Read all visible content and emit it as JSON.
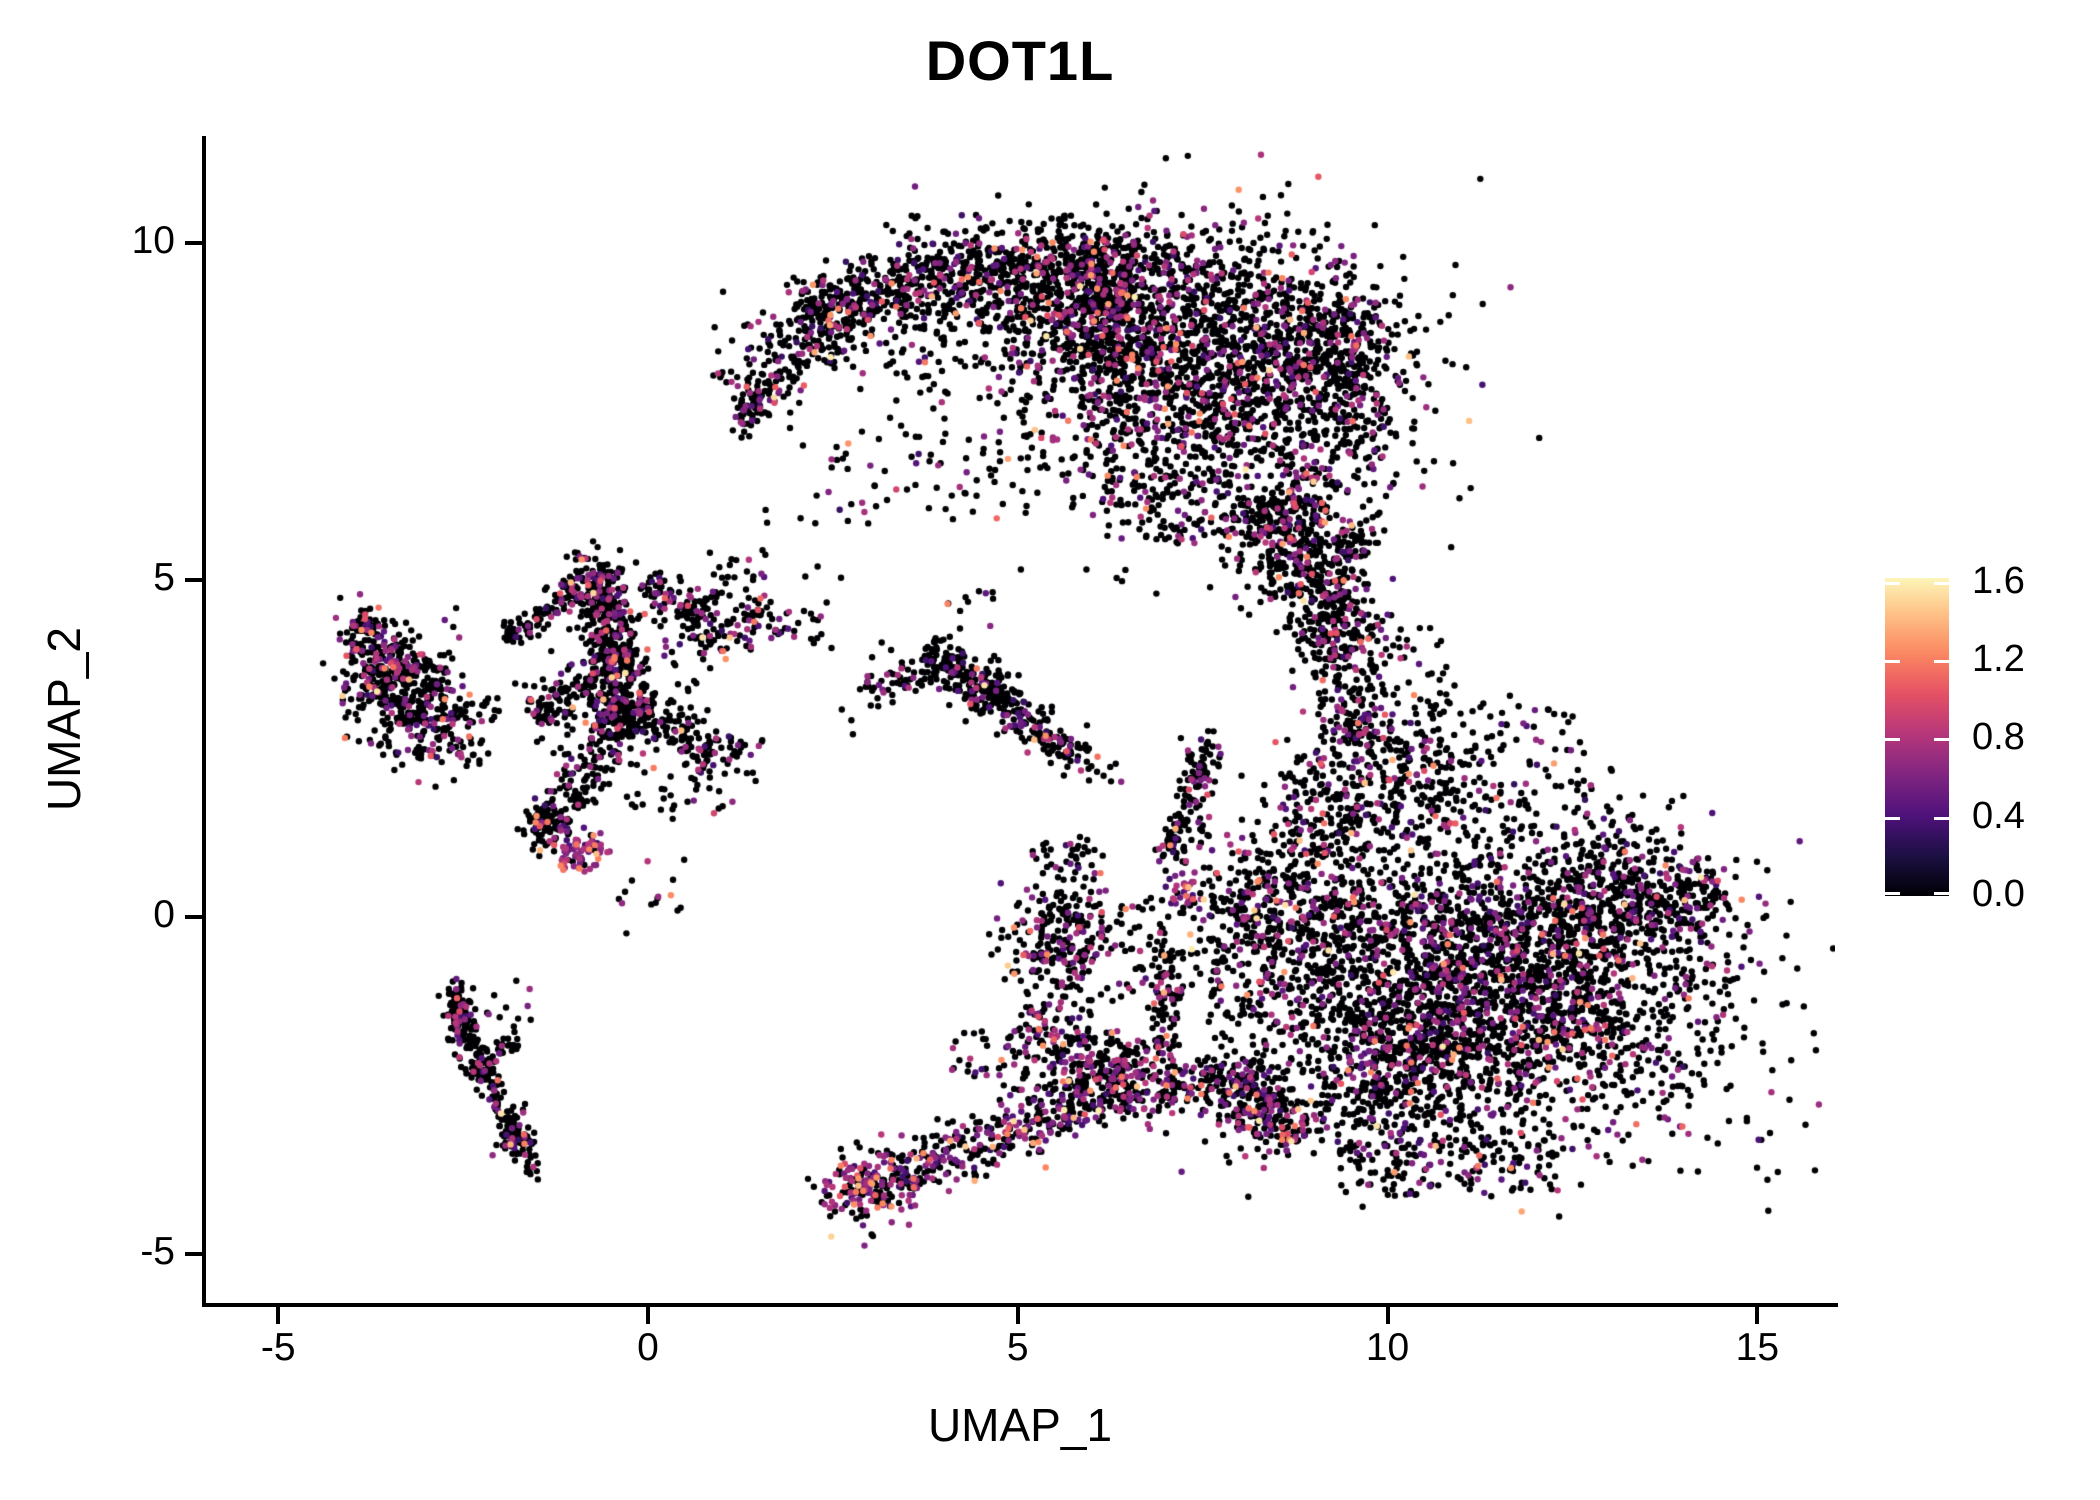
{
  "title": "DOT1L",
  "chart_data": {
    "type": "scatter",
    "title": "DOT1L",
    "xlabel": "UMAP_1",
    "ylabel": "UMAP_2",
    "x_ticks": [
      -5,
      0,
      5,
      10,
      15
    ],
    "x_tick_labels": [
      "-5",
      "0",
      "5",
      "10",
      "15"
    ],
    "y_ticks": [
      10,
      5,
      0,
      -5
    ],
    "y_tick_labels": [
      "10",
      "5",
      "0",
      "-5"
    ],
    "xlim": [
      -5.99,
      16.05
    ],
    "ylim": [
      -5.73,
      11.56
    ],
    "grid": false,
    "legend_position": "right",
    "colorbar": {
      "ticks": [
        0.0,
        0.4,
        0.8,
        1.2,
        1.6
      ],
      "tick_labels": [
        "0.0",
        "0.4",
        "0.8",
        "1.2",
        "1.6"
      ],
      "vmin": 0.0,
      "vmax": 1.624,
      "colormap": "magma",
      "anchors": [
        [
          0.0,
          "#000004"
        ],
        [
          0.125,
          "#1C1044"
        ],
        [
          0.25,
          "#4F127B"
        ],
        [
          0.375,
          "#812581"
        ],
        [
          0.5,
          "#B5367A"
        ],
        [
          0.625,
          "#E55064"
        ],
        [
          0.75,
          "#FB8761"
        ],
        [
          0.875,
          "#FEC287"
        ],
        [
          1.0,
          "#FCFDBF"
        ]
      ],
      "colormap_value_max": 1.65
    },
    "point_radius_px": 3.2,
    "zero_expression_color": "#000004",
    "seed": 42,
    "value_model": {
      "p_colored_base": 0.21,
      "bands": [
        {
          "p": 0.28,
          "range": [
            0.3,
            0.55
          ]
        },
        {
          "p": 0.57,
          "range": [
            0.55,
            0.85
          ]
        },
        {
          "p": 0.115,
          "range": [
            0.95,
            1.3
          ]
        },
        {
          "p": 0.035,
          "range": [
            1.3,
            1.6
          ]
        }
      ]
    },
    "clusters": [
      {
        "name": "arc-band-1",
        "kind": "strip",
        "x1": 1.35,
        "y1": 7.55,
        "x2": 2.1,
        "y2": 8.75,
        "s": 0.28,
        "n": 140,
        "hot": 1
      },
      {
        "name": "arc-band-2",
        "kind": "strip",
        "x1": 2.1,
        "y1": 8.75,
        "x2": 3.3,
        "y2": 9.35,
        "s": 0.3,
        "n": 220,
        "hot": 1
      },
      {
        "name": "arc-band-3",
        "kind": "strip",
        "x1": 3.3,
        "y1": 9.35,
        "x2": 5.0,
        "y2": 9.65,
        "s": 0.32,
        "n": 320,
        "hot": 1
      },
      {
        "name": "arc-band-4",
        "kind": "strip",
        "x1": 5.0,
        "y1": 9.65,
        "x2": 6.6,
        "y2": 9.45,
        "s": 0.35,
        "n": 330,
        "hot": 1
      },
      {
        "name": "arc-tail-tip",
        "kind": "gauss",
        "cx": 1.32,
        "cy": 7.5,
        "sx": 0.1,
        "sy": 0.18,
        "rot": 0,
        "n": 45,
        "hot": 1
      },
      {
        "name": "arc-band-underfringe",
        "kind": "box",
        "x1": 2.0,
        "y1": 8.0,
        "x2": 5.2,
        "y2": 9.3,
        "n": 160,
        "hot": 1
      },
      {
        "name": "arc-band-topfringe",
        "kind": "box",
        "x1": 2.2,
        "y1": 9.0,
        "x2": 3.3,
        "y2": 9.8,
        "n": 30,
        "hot": 1
      },
      {
        "name": "arc-top-sparse",
        "kind": "box",
        "x1": 3.2,
        "y1": 9.6,
        "x2": 6.2,
        "y2": 10.45,
        "n": 45,
        "hot": 1
      },
      {
        "name": "arc-top-sparse-2",
        "kind": "box",
        "x1": 5.8,
        "y1": 9.5,
        "x2": 7.8,
        "y2": 10.3,
        "n": 50,
        "hot": 1
      },
      {
        "name": "arc-hole-sparse",
        "kind": "box",
        "x1": 2.5,
        "y1": 5.9,
        "x2": 5.2,
        "y2": 7.9,
        "n": 70,
        "hot": 1
      },
      {
        "name": "arc-right-mass",
        "kind": "gauss",
        "cx": 7.5,
        "cy": 8.1,
        "sx": 1.35,
        "sy": 1.05,
        "rot": -15,
        "n": 1900,
        "hot": 1
      },
      {
        "name": "arc-mid-mass",
        "kind": "gauss",
        "cx": 6.3,
        "cy": 8.9,
        "sx": 0.75,
        "sy": 0.55,
        "rot": 0,
        "n": 420,
        "hot": 1
      },
      {
        "name": "arc-ne-bulge",
        "kind": "gauss",
        "cx": 9.15,
        "cy": 8.65,
        "sx": 0.5,
        "sy": 0.5,
        "rot": 0,
        "n": 260,
        "hot": 1
      },
      {
        "name": "arc-right-edge",
        "kind": "gauss",
        "cx": 9.55,
        "cy": 7.8,
        "sx": 0.25,
        "sy": 0.7,
        "rot": 0,
        "n": 140,
        "hot": 1
      },
      {
        "name": "arc-limb",
        "kind": "strip",
        "x1": 8.3,
        "y1": 6.3,
        "x2": 9.0,
        "y2": 4.9,
        "s": 0.4,
        "n": 330,
        "hot": 1
      },
      {
        "name": "arc-limb-lower",
        "kind": "strip",
        "x1": 9.0,
        "y1": 4.9,
        "x2": 9.4,
        "y2": 3.85,
        "s": 0.25,
        "n": 130,
        "hot": 1
      },
      {
        "name": "arc-halo",
        "kind": "box",
        "x1": 6.2,
        "y1": 5.6,
        "x2": 9.2,
        "y2": 6.6,
        "n": 160,
        "hot": 1
      },
      {
        "name": "arc-left-dots",
        "kind": "box",
        "x1": 0.9,
        "y1": 7.9,
        "x2": 1.5,
        "y2": 8.8,
        "n": 8,
        "hot": 1
      },
      {
        "name": "blob-main",
        "kind": "gauss",
        "cx": 11.35,
        "cy": -0.95,
        "sx": 1.65,
        "sy": 1.15,
        "rot": -8,
        "n": 2900,
        "hot": 1
      },
      {
        "name": "blob-bottomleft",
        "kind": "gauss",
        "cx": 10.2,
        "cy": -2.1,
        "sx": 0.8,
        "sy": 0.7,
        "rot": 0,
        "n": 500,
        "hot": 1
      },
      {
        "name": "blob-ne-lobe",
        "kind": "gauss",
        "cx": 13.25,
        "cy": 0.3,
        "sx": 0.7,
        "sy": 0.45,
        "rot": -10,
        "n": 330,
        "hot": 1
      },
      {
        "name": "blob-right-tip",
        "kind": "strip",
        "x1": 13.9,
        "y1": 0.4,
        "x2": 14.45,
        "y2": 0.6,
        "s": 0.17,
        "n": 55,
        "hot": 1
      },
      {
        "name": "blob-top-band",
        "kind": "gauss",
        "cx": 10.15,
        "cy": 1.95,
        "sx": 0.75,
        "sy": 0.5,
        "rot": 0,
        "n": 260,
        "hot": 1
      },
      {
        "name": "blob-neck",
        "kind": "strip",
        "x1": 9.6,
        "y1": 2.5,
        "x2": 9.25,
        "y2": 4.55,
        "s": 0.28,
        "n": 210,
        "hot": 1
      },
      {
        "name": "blob-neck-upper",
        "kind": "strip",
        "x1": 9.3,
        "y1": 4.6,
        "x2": 9.6,
        "y2": 5.85,
        "s": 0.22,
        "n": 90,
        "hot": 1
      },
      {
        "name": "blob-neck-fill",
        "kind": "box",
        "x1": 9.7,
        "y1": 2.3,
        "x2": 10.8,
        "y2": 4.3,
        "n": 60,
        "hot": 1
      },
      {
        "name": "blob-above-sparse",
        "kind": "box",
        "x1": 10.3,
        "y1": 1.6,
        "x2": 12.7,
        "y2": 3.3,
        "n": 80,
        "hot": 1
      },
      {
        "name": "blob-left-arm",
        "kind": "gauss",
        "cx": 8.15,
        "cy": 0.1,
        "sx": 0.45,
        "sy": 0.55,
        "rot": 0,
        "n": 210,
        "hot": 1
      },
      {
        "name": "blob-left-edge",
        "kind": "gauss",
        "cx": 9.0,
        "cy": 0.6,
        "sx": 0.4,
        "sy": 0.8,
        "rot": 0,
        "n": 180,
        "hot": 1
      },
      {
        "name": "blob-top-sparse",
        "kind": "box",
        "x1": 8.7,
        "y1": 1.2,
        "x2": 9.6,
        "y2": 2.4,
        "n": 40,
        "hot": 1
      },
      {
        "name": "orange-knot",
        "kind": "gauss",
        "cx": 7.25,
        "cy": 0.5,
        "sx": 0.14,
        "sy": 0.18,
        "rot": 0,
        "n": 30,
        "hot": 4
      },
      {
        "name": "blob-sw-tail",
        "kind": "strip",
        "x1": 8.85,
        "y1": -3.3,
        "x2": 7.55,
        "y2": -2.25,
        "s": 0.3,
        "n": 300,
        "hot": 1.6
      },
      {
        "name": "blob-bottom-fringe",
        "kind": "box",
        "x1": 9.3,
        "y1": -4.15,
        "x2": 12.3,
        "y2": -3.3,
        "n": 130,
        "hot": 1
      },
      {
        "name": "blob-far-right-dots",
        "kind": "box",
        "x1": 12.8,
        "y1": 1.0,
        "x2": 14.0,
        "y2": 1.9,
        "n": 15,
        "hot": 1
      },
      {
        "name": "gap-dots-bc",
        "kind": "box",
        "x1": 7.6,
        "y1": -1.6,
        "x2": 8.8,
        "y2": -0.6,
        "n": 40,
        "hot": 1
      },
      {
        "name": "bottom-tip-knot",
        "kind": "gauss",
        "cx": 3.0,
        "cy": -4.0,
        "sx": 0.3,
        "sy": 0.28,
        "rot": 0,
        "n": 170,
        "hot": 2.4
      },
      {
        "name": "bottom-band",
        "kind": "strip",
        "x1": 3.35,
        "y1": -3.85,
        "x2": 6.6,
        "y2": -2.45,
        "s": 0.22,
        "n": 430,
        "hot": 1.9
      },
      {
        "name": "bottom-band-upper",
        "kind": "strip",
        "x1": 5.0,
        "y1": -1.55,
        "x2": 7.35,
        "y2": -2.65,
        "s": 0.26,
        "n": 310,
        "hot": 1.7
      },
      {
        "name": "bottom-between-fill",
        "kind": "box",
        "x1": 4.1,
        "y1": -2.6,
        "x2": 6.2,
        "y2": -1.7,
        "n": 70,
        "hot": 1
      },
      {
        "name": "center-column",
        "kind": "gauss",
        "cx": 5.65,
        "cy": -0.3,
        "sx": 0.4,
        "sy": 0.48,
        "rot": 0,
        "n": 260,
        "hot": 1.4
      },
      {
        "name": "center-column-top-dots",
        "kind": "box",
        "x1": 5.2,
        "y1": 0.5,
        "x2": 6.1,
        "y2": 1.2,
        "n": 30,
        "hot": 1
      },
      {
        "name": "center-pillar",
        "kind": "strip",
        "x1": 6.95,
        "y1": -1.95,
        "x2": 7.1,
        "y2": -0.35,
        "s": 0.13,
        "n": 85,
        "hot": 1
      },
      {
        "name": "center-strings",
        "kind": "strip",
        "x1": 7.05,
        "y1": 0.85,
        "x2": 7.5,
        "y2": 2.2,
        "s": 0.12,
        "n": 100,
        "hot": 1
      },
      {
        "name": "center-string-knot",
        "kind": "gauss",
        "cx": 7.52,
        "cy": 2.3,
        "sx": 0.13,
        "sy": 0.22,
        "rot": 0,
        "n": 45,
        "hot": 1
      },
      {
        "name": "center-scatter",
        "kind": "box",
        "x1": 6.3,
        "y1": -1.2,
        "x2": 7.0,
        "y2": 0.3,
        "n": 40,
        "hot": 1
      },
      {
        "name": "bird-diagonal",
        "kind": "strip",
        "x1": 3.75,
        "y1": 4.0,
        "x2": 5.85,
        "y2": 2.35,
        "s": 0.15,
        "n": 250,
        "hot": 1
      },
      {
        "name": "bird-knot",
        "kind": "gauss",
        "cx": 4.55,
        "cy": 3.4,
        "sx": 0.3,
        "sy": 0.18,
        "rot": -25,
        "n": 90,
        "hot": 1
      },
      {
        "name": "bird-left-arm",
        "kind": "strip",
        "x1": 2.95,
        "y1": 3.35,
        "x2": 3.9,
        "y2": 3.75,
        "s": 0.12,
        "n": 55,
        "hot": 1
      },
      {
        "name": "bird-top-dots",
        "kind": "box",
        "x1": 4.0,
        "y1": 4.3,
        "x2": 4.7,
        "y2": 4.95,
        "n": 10,
        "hot": 1
      },
      {
        "name": "bird-trail-dots",
        "kind": "box",
        "x1": 5.8,
        "y1": 2.0,
        "x2": 6.4,
        "y2": 2.4,
        "n": 12,
        "hot": 1
      },
      {
        "name": "mid-vstring",
        "kind": "strip",
        "x1": -0.55,
        "y1": 4.9,
        "x2": -0.35,
        "y2": 2.65,
        "s": 0.16,
        "n": 190,
        "hot": 1
      },
      {
        "name": "mid-upper-knot",
        "kind": "gauss",
        "cx": -0.72,
        "cy": 5.0,
        "sx": 0.2,
        "sy": 0.22,
        "rot": 0,
        "n": 120,
        "hot": 1
      },
      {
        "name": "mid-knot-1",
        "kind": "gauss",
        "cx": -0.5,
        "cy": 3.9,
        "sx": 0.22,
        "sy": 0.3,
        "rot": 0,
        "n": 150,
        "hot": 1
      },
      {
        "name": "mid-knot-2",
        "kind": "gauss",
        "cx": -0.38,
        "cy": 2.95,
        "sx": 0.2,
        "sy": 0.24,
        "rot": 0,
        "n": 110,
        "hot": 1
      },
      {
        "name": "mid-topright-arm",
        "kind": "strip",
        "x1": -0.1,
        "y1": 4.95,
        "x2": 0.85,
        "y2": 4.45,
        "s": 0.15,
        "n": 90,
        "hot": 1
      },
      {
        "name": "mid-top-dots",
        "kind": "box",
        "x1": 0.8,
        "y1": 4.5,
        "x2": 1.6,
        "y2": 5.45,
        "n": 30,
        "hot": 1
      },
      {
        "name": "mid-topleft-chain-1",
        "kind": "strip",
        "x1": -1.95,
        "y1": 4.15,
        "x2": -1.25,
        "y2": 4.6,
        "s": 0.1,
        "n": 55,
        "hot": 1
      },
      {
        "name": "mid-topleft-chain-2",
        "kind": "strip",
        "x1": -1.25,
        "y1": 4.6,
        "x2": -0.75,
        "y2": 4.95,
        "s": 0.12,
        "n": 45,
        "hot": 1
      },
      {
        "name": "mid-left-arm",
        "kind": "strip",
        "x1": -1.6,
        "y1": 3.0,
        "x2": -0.65,
        "y2": 3.45,
        "s": 0.18,
        "n": 100,
        "hot": 1
      },
      {
        "name": "mid-lower-branch",
        "kind": "strip",
        "x1": -0.6,
        "y1": 2.55,
        "x2": -1.3,
        "y2": 1.3,
        "s": 0.17,
        "n": 120,
        "hot": 1
      },
      {
        "name": "mid-black-knot",
        "kind": "gauss",
        "cx": -1.4,
        "cy": 1.32,
        "sx": 0.15,
        "sy": 0.15,
        "rot": 0,
        "n": 60,
        "hot": 1
      },
      {
        "name": "mid-magenta-knot",
        "kind": "gauss",
        "cx": -0.92,
        "cy": 0.95,
        "sx": 0.2,
        "sy": 0.13,
        "rot": 25,
        "n": 70,
        "hot": 5
      },
      {
        "name": "mid-below-dots",
        "kind": "box",
        "x1": -0.4,
        "y1": -0.35,
        "x2": 0.5,
        "y2": 0.9,
        "n": 15,
        "hot": 1
      },
      {
        "name": "mid-right-branch",
        "kind": "strip",
        "x1": -0.25,
        "y1": 3.2,
        "x2": 0.9,
        "y2": 2.4,
        "s": 0.2,
        "n": 120,
        "hot": 1
      },
      {
        "name": "mid-right-dots",
        "kind": "box",
        "x1": 0.7,
        "y1": 2.0,
        "x2": 1.55,
        "y2": 2.7,
        "n": 35,
        "hot": 1
      },
      {
        "name": "mid-rightup-arm",
        "kind": "strip",
        "x1": 0.6,
        "y1": 4.0,
        "x2": 1.75,
        "y2": 4.5,
        "s": 0.16,
        "n": 80,
        "hot": 1.6
      },
      {
        "name": "mid-rightup-dots",
        "kind": "box",
        "x1": 1.75,
        "y1": 4.1,
        "x2": 2.35,
        "y2": 4.65,
        "n": 18,
        "hot": 1
      },
      {
        "name": "mid-fill",
        "kind": "box",
        "x1": -1.5,
        "y1": 2.2,
        "x2": 1.0,
        "y2": 4.8,
        "n": 110,
        "hot": 1
      },
      {
        "name": "mid-low-fill",
        "kind": "box",
        "x1": -0.3,
        "y1": 1.4,
        "x2": 1.2,
        "y2": 2.3,
        "n": 30,
        "hot": 1
      },
      {
        "name": "mid-west-dots",
        "kind": "box",
        "x1": -2.35,
        "y1": 2.9,
        "x2": -1.9,
        "y2": 3.5,
        "n": 8,
        "hot": 1
      },
      {
        "name": "left-main-blob",
        "kind": "gauss",
        "cx": -3.6,
        "cy": 3.6,
        "sx": 0.28,
        "sy": 0.35,
        "rot": 0,
        "n": 200,
        "hot": 1
      },
      {
        "name": "left-top-knot",
        "kind": "gauss",
        "cx": -3.85,
        "cy": 4.25,
        "sx": 0.15,
        "sy": 0.18,
        "rot": 0,
        "n": 55,
        "hot": 1.8
      },
      {
        "name": "left-right-lobe",
        "kind": "gauss",
        "cx": -2.95,
        "cy": 2.95,
        "sx": 0.33,
        "sy": 0.35,
        "rot": 0,
        "n": 200,
        "hot": 1
      },
      {
        "name": "left-connect-arm",
        "kind": "strip",
        "x1": -3.6,
        "y1": 4.0,
        "x2": -2.8,
        "y2": 3.4,
        "s": 0.18,
        "n": 70,
        "hot": 1
      },
      {
        "name": "left-lower-dots",
        "kind": "box",
        "x1": -2.6,
        "y1": 2.2,
        "x2": -2.2,
        "y2": 2.7,
        "n": 15,
        "hot": 1
      },
      {
        "name": "left-fringe",
        "kind": "box",
        "x1": -4.2,
        "y1": 2.4,
        "x2": -2.4,
        "y2": 4.6,
        "n": 55,
        "hot": 1
      },
      {
        "name": "lambda-seg-1",
        "kind": "strip",
        "x1": -2.62,
        "y1": -1.1,
        "x2": -2.2,
        "y2": -2.35,
        "s": 0.09,
        "n": 85,
        "hot": 1
      },
      {
        "name": "lambda-seg-2",
        "kind": "strip",
        "x1": -2.2,
        "y1": -2.35,
        "x2": -1.7,
        "y2": -3.55,
        "s": 0.09,
        "n": 85,
        "hot": 1
      },
      {
        "name": "lambda-top-knot",
        "kind": "gauss",
        "cx": -2.58,
        "cy": -1.5,
        "sx": 0.09,
        "sy": 0.3,
        "rot": 0,
        "n": 60,
        "hot": 1
      },
      {
        "name": "lambda-bottom-knot",
        "kind": "gauss",
        "cx": -1.78,
        "cy": -3.2,
        "sx": 0.12,
        "sy": 0.18,
        "rot": 0,
        "n": 45,
        "hot": 1
      },
      {
        "name": "lambda-branch",
        "kind": "strip",
        "x1": -2.45,
        "y1": -2.35,
        "x2": -1.7,
        "y2": -1.75,
        "s": 0.09,
        "n": 50,
        "hot": 1
      },
      {
        "name": "lambda-end-dots",
        "kind": "box",
        "x1": -1.72,
        "y1": -3.95,
        "x2": -1.45,
        "y2": -3.5,
        "n": 12,
        "hot": 1
      },
      {
        "name": "lambda-scatter",
        "kind": "box",
        "x1": -2.7,
        "y1": -1.55,
        "x2": -1.5,
        "y2": -0.85,
        "n": 12,
        "hot": 1
      },
      {
        "name": "sparse-upper-mid",
        "kind": "box",
        "x1": 1.4,
        "y1": 4.6,
        "x2": 3.2,
        "y2": 7.0,
        "n": 18,
        "hot": 1
      },
      {
        "name": "sparse-d-west",
        "kind": "box",
        "x1": 2.2,
        "y1": 2.6,
        "x2": 3.4,
        "y2": 4.4,
        "n": 10,
        "hot": 1
      }
    ]
  }
}
